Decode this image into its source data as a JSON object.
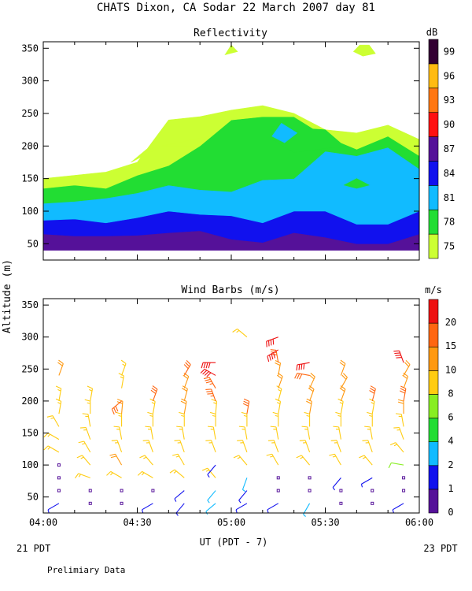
{
  "header": {
    "title": "CHATS Dixon, CA   Sodar   22 March 2007   day  81",
    "ylabel": "Altitude (m)",
    "xlabel": "UT  (PDT - 7)",
    "left_date": "21 PDT",
    "right_date": "23 PDT",
    "footnote": "Prelimiary Data"
  },
  "chart_data": [
    {
      "type": "contour",
      "title": "Reflectivity",
      "x_ticks": [
        "04:00",
        "04:30",
        "05:00",
        "05:30",
        "06:00"
      ],
      "y_ticks": [
        "50",
        "100",
        "150",
        "200",
        "250",
        "300",
        "350"
      ],
      "ylim": [
        25,
        360
      ],
      "xlim": [
        "04:00",
        "06:00"
      ],
      "colorbar": {
        "unit": "dB",
        "levels": [
          "75",
          "78",
          "81",
          "84",
          "87",
          "90",
          "93",
          "96",
          "99"
        ],
        "colors": [
          "#ccff33",
          "#22dd33",
          "#11bbff",
          "#1111ee",
          "#551199",
          "#ff1111",
          "#ff7711",
          "#ffbb11",
          "#330033"
        ]
      },
      "x_minutes": [
        0,
        10,
        20,
        30,
        40,
        50,
        60,
        70,
        80,
        90,
        100,
        110,
        120
      ],
      "layers": [
        {
          "level": "87",
          "bottom": [
            40,
            40,
            40,
            40,
            40,
            40,
            40,
            40,
            40,
            40,
            40,
            40,
            40
          ],
          "top": [
            65,
            62,
            62,
            63,
            67,
            70,
            57,
            52,
            67,
            60,
            50,
            50,
            65
          ]
        },
        {
          "level": "84",
          "bottom": [
            65,
            62,
            62,
            63,
            67,
            70,
            57,
            52,
            67,
            60,
            50,
            50,
            65
          ],
          "top": [
            86,
            88,
            82,
            90,
            100,
            95,
            93,
            82,
            100,
            100,
            80,
            80,
            100
          ]
        },
        {
          "level": "81",
          "bottom": [
            86,
            88,
            82,
            90,
            100,
            95,
            93,
            82,
            100,
            100,
            80,
            80,
            100
          ],
          "top": [
            112,
            115,
            120,
            128,
            140,
            133,
            130,
            148,
            150,
            192,
            185,
            198,
            165
          ]
        },
        {
          "level": "78",
          "bottom": [
            112,
            115,
            120,
            128,
            140,
            133,
            130,
            148,
            150,
            192,
            185,
            198,
            165
          ],
          "top": [
            135,
            140,
            135,
            155,
            170,
            200,
            240,
            245,
            245,
            215,
            195,
            215,
            185
          ]
        },
        {
          "level": "75",
          "bottom": [
            135,
            140,
            135,
            155,
            170,
            200,
            240,
            245,
            245,
            215,
            195,
            215,
            185
          ],
          "top": [
            150,
            155,
            160,
            175,
            240,
            245,
            255,
            262,
            250,
            225,
            220,
            232,
            210
          ]
        }
      ],
      "extra_regions": [
        {
          "level": "78",
          "points": [
            [
              73,
              230
            ],
            [
              90,
              225
            ],
            [
              96,
              200
            ],
            [
              80,
              190
            ],
            [
              73,
              210
            ]
          ]
        },
        {
          "level": "81",
          "points": [
            [
              76,
              235
            ],
            [
              81,
              220
            ],
            [
              77,
              205
            ],
            [
              73,
              215
            ]
          ]
        },
        {
          "level": "75",
          "points": [
            [
              28,
              175
            ],
            [
              33,
              195
            ],
            [
              53,
              215
            ],
            [
              48,
              200
            ],
            [
              38,
              200
            ]
          ]
        },
        {
          "level": "75",
          "points": [
            [
              58,
              340
            ],
            [
              60,
              355
            ],
            [
              62,
              345
            ]
          ]
        },
        {
          "level": "75",
          "points": [
            [
              99,
              345
            ],
            [
              101,
              355
            ],
            [
              104,
              355
            ],
            [
              106,
              342
            ],
            [
              102,
              338
            ]
          ]
        },
        {
          "level": "78",
          "points": [
            [
              96,
              140
            ],
            [
              100,
              150
            ],
            [
              104,
              140
            ],
            [
              100,
              135
            ]
          ]
        }
      ]
    },
    {
      "type": "wind_barbs",
      "title": "Wind Barbs (m/s)",
      "x_ticks": [
        "04:00",
        "04:30",
        "05:00",
        "05:30",
        "06:00"
      ],
      "y_ticks": [
        "50",
        "100",
        "150",
        "200",
        "250",
        "300",
        "350"
      ],
      "ylim": [
        25,
        360
      ],
      "xlim": [
        "04:00",
        "06:00"
      ],
      "colorbar": {
        "unit": "m/s",
        "labels": [
          "0",
          "1",
          "2",
          "4",
          "6",
          "8",
          "10",
          "15",
          "20"
        ],
        "colors": [
          "#551199",
          "#1111ee",
          "#11bbff",
          "#22dd33",
          "#88ee22",
          "#ffcc11",
          "#ff9911",
          "#ff6611",
          "#ee1111"
        ]
      },
      "profile_minutes": [
        5,
        15,
        25,
        35,
        45,
        55,
        65,
        75,
        85,
        95,
        105,
        115
      ],
      "heights": [
        40,
        60,
        80,
        100,
        120,
        140,
        160,
        180,
        200,
        220,
        240,
        260,
        280,
        300
      ],
      "profiles": [
        {
          "minute": 5,
          "speeds": [
            1.2,
            0.4,
            0.3,
            0.4,
            9,
            9,
            9,
            9,
            9,
            null,
            10,
            null,
            null,
            null
          ],
          "dirs": [
            240,
            0,
            0,
            0,
            300,
            300,
            330,
            10,
            10,
            null,
            20,
            null,
            null,
            null
          ]
        },
        {
          "minute": 15,
          "speeds": [
            0.4,
            0.4,
            9,
            9,
            9,
            9,
            9,
            9,
            9,
            null,
            null,
            null,
            null,
            null
          ],
          "dirs": [
            0,
            0,
            290,
            320,
            330,
            340,
            350,
            0,
            10,
            null,
            null,
            null,
            null,
            null
          ]
        },
        {
          "minute": 25,
          "speeds": [
            0.4,
            0.3,
            9,
            10,
            9,
            9,
            9,
            10,
            15,
            9,
            9,
            null,
            null,
            null
          ],
          "dirs": [
            0,
            0,
            300,
            330,
            340,
            350,
            0,
            5,
            230,
            10,
            20,
            null,
            null,
            null
          ]
        },
        {
          "minute": 35,
          "speeds": [
            1.5,
            0.4,
            9,
            9,
            9,
            9,
            9,
            9,
            16,
            null,
            null,
            null,
            null,
            null
          ],
          "dirs": [
            240,
            0,
            300,
            320,
            340,
            350,
            0,
            10,
            20,
            null,
            null,
            null,
            null,
            null
          ]
        },
        {
          "minute": 45,
          "speeds": [
            1.3,
            1.3,
            9,
            9,
            9,
            9,
            9,
            10,
            10,
            10,
            15,
            null,
            null,
            null
          ],
          "dirs": [
            220,
            230,
            310,
            330,
            340,
            350,
            0,
            10,
            15,
            20,
            30,
            null,
            null,
            null
          ]
        },
        {
          "minute": 55,
          "speeds": [
            3,
            3,
            9,
            1.5,
            9,
            9,
            9,
            9,
            18,
            18,
            20,
            20,
            null,
            null
          ],
          "dirs": [
            230,
            220,
            320,
            220,
            340,
            350,
            0,
            5,
            340,
            330,
            300,
            270,
            null,
            null
          ]
        },
        {
          "minute": 65,
          "speeds": [
            1.2,
            1.5,
            2.5,
            9,
            9,
            9,
            9,
            16,
            null,
            null,
            null,
            null,
            null,
            9
          ],
          "dirs": [
            240,
            220,
            200,
            320,
            340,
            350,
            0,
            10,
            null,
            null,
            null,
            null,
            null,
            310
          ]
        },
        {
          "minute": 75,
          "speeds": [
            1.5,
            0.3,
            0.3,
            9,
            9,
            9,
            9,
            9,
            9,
            10,
            10,
            15,
            20,
            20
          ],
          "dirs": [
            240,
            0,
            0,
            330,
            340,
            350,
            0,
            10,
            15,
            20,
            10,
            350,
            240,
            250
          ]
        },
        {
          "minute": 85,
          "speeds": [
            2.5,
            0.3,
            0.3,
            9,
            9,
            9,
            9,
            10,
            10,
            10,
            16,
            20,
            null,
            null
          ],
          "dirs": [
            210,
            0,
            0,
            320,
            340,
            350,
            0,
            10,
            20,
            25,
            280,
            260,
            null,
            null
          ]
        },
        {
          "minute": 95,
          "speeds": [
            0.4,
            0.3,
            1.5,
            9,
            9,
            9,
            9,
            9,
            10,
            10,
            10,
            null,
            null,
            null
          ],
          "dirs": [
            0,
            0,
            220,
            330,
            340,
            350,
            0,
            10,
            20,
            30,
            20,
            null,
            null,
            null
          ]
        },
        {
          "minute": 105,
          "speeds": [
            0.3,
            0.3,
            1.6,
            9,
            9,
            9,
            9,
            9,
            15,
            null,
            null,
            null,
            null,
            null
          ],
          "dirs": [
            0,
            0,
            240,
            320,
            340,
            350,
            0,
            10,
            15,
            null,
            null,
            null,
            null,
            null
          ]
        },
        {
          "minute": 115,
          "speeds": [
            1.5,
            0.3,
            0.3,
            6,
            9,
            9,
            9,
            10,
            15,
            10,
            10,
            20,
            null,
            null
          ],
          "dirs": [
            240,
            0,
            0,
            280,
            320,
            340,
            350,
            0,
            10,
            20,
            30,
            340,
            20,
            null
          ]
        }
      ]
    }
  ]
}
